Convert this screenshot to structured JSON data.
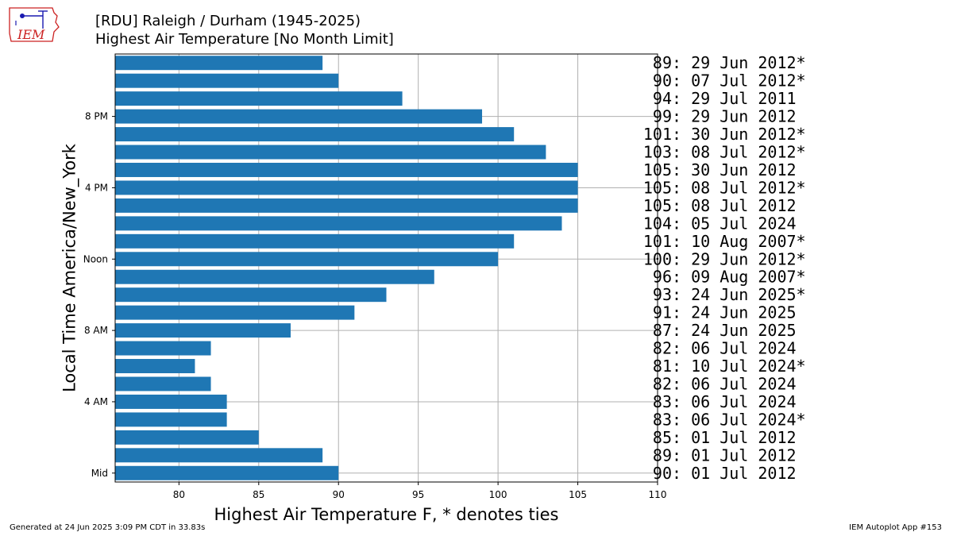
{
  "header": {
    "title_line1": "[RDU] Raleigh / Durham (1945-2025)",
    "title_line2": "Highest Air Temperature [No Month Limit]",
    "logo_text": "IEM"
  },
  "footer": {
    "left": "Generated at 24 Jun 2025 3:09 PM CDT in 33.83s",
    "right": "IEM Autoplot App #153"
  },
  "colors": {
    "bar": "#1f77b4",
    "grid": "#b0b0b0",
    "logo_red": "#cc2222",
    "logo_blue": "#1a1ab0"
  },
  "chart_data": {
    "type": "bar",
    "orientation": "horizontal",
    "xlabel": "Highest Air Temperature F, * denotes ties",
    "ylabel": "Local Time America/New_York",
    "xlim": [
      76,
      110
    ],
    "xticks": [
      80,
      85,
      90,
      95,
      100,
      105,
      110
    ],
    "yticks": [
      {
        "hour": 0,
        "label": "Mid"
      },
      {
        "hour": 4,
        "label": "4 AM"
      },
      {
        "hour": 8,
        "label": "8 AM"
      },
      {
        "hour": 12,
        "label": "Noon"
      },
      {
        "hour": 16,
        "label": "4 PM"
      },
      {
        "hour": 20,
        "label": "8 PM"
      }
    ],
    "grid": true,
    "hours": [
      0,
      1,
      2,
      3,
      4,
      5,
      6,
      7,
      8,
      9,
      10,
      11,
      12,
      13,
      14,
      15,
      16,
      17,
      18,
      19,
      20,
      21,
      22,
      23
    ],
    "values": [
      90,
      89,
      85,
      83,
      83,
      82,
      81,
      82,
      87,
      91,
      93,
      96,
      100,
      101,
      104,
      105,
      105,
      105,
      103,
      101,
      99,
      94,
      90,
      89
    ],
    "annotations": [
      "90: 01 Jul 2012",
      "89: 01 Jul 2012",
      "85: 01 Jul 2012",
      "83: 06 Jul 2024*",
      "83: 06 Jul 2024",
      "82: 06 Jul 2024",
      "81: 10 Jul 2024*",
      "82: 06 Jul 2024",
      "87: 24 Jun 2025",
      "91: 24 Jun 2025",
      "93: 24 Jun 2025*",
      "96: 09 Aug 2007*",
      "100: 29 Jun 2012*",
      "101: 10 Aug 2007*",
      "104: 05 Jul 2024",
      "105: 08 Jul 2012",
      "105: 08 Jul 2012*",
      "105: 30 Jun 2012",
      "103: 08 Jul 2012*",
      "101: 30 Jun 2012*",
      "99: 29 Jun 2012",
      "94: 29 Jul 2011",
      "90: 07 Jul 2012*",
      "89: 29 Jun 2012*"
    ]
  }
}
